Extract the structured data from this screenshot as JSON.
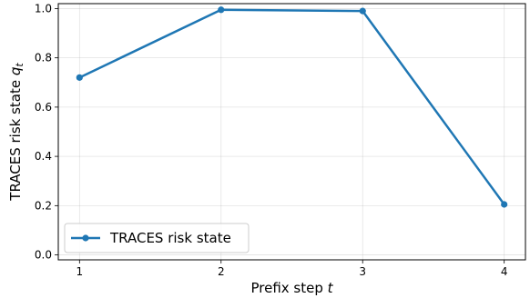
{
  "chart_data": {
    "type": "line",
    "x": [
      1,
      2,
      3,
      4
    ],
    "series": [
      {
        "name": "TRACES risk state",
        "values": [
          0.72,
          0.995,
          0.99,
          0.205
        ],
        "color": "#1f77b4"
      }
    ],
    "xlabel": {
      "text": "Prefix step ",
      "var": "t"
    },
    "ylabel": {
      "text": "TRACES risk state ",
      "var": "q",
      "sub": "t"
    },
    "xticks": [
      1,
      2,
      3,
      4
    ],
    "yticks": [
      0.0,
      0.2,
      0.4,
      0.6,
      0.8,
      1.0
    ],
    "yticklabels": [
      "0.0",
      "0.2",
      "0.4",
      "0.6",
      "0.8",
      "1.0"
    ],
    "xlim": [
      0.85,
      4.15
    ],
    "ylim": [
      -0.02,
      1.02
    ],
    "grid": true,
    "legend": "lower-left"
  }
}
